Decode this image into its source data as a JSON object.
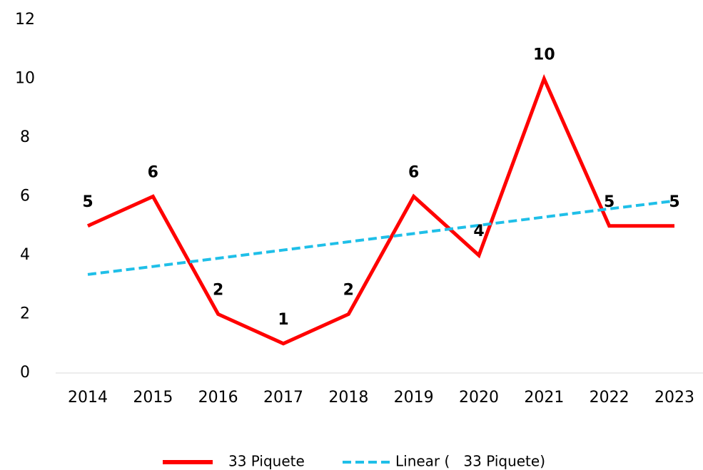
{
  "chart_data": {
    "type": "line",
    "categories": [
      "2014",
      "2015",
      "2016",
      "2017",
      "2018",
      "2019",
      "2020",
      "2021",
      "2022",
      "2023"
    ],
    "series": [
      {
        "name": "33 Piquete",
        "color": "#ff0000",
        "values": [
          5,
          6,
          2,
          1,
          2,
          6,
          4,
          10,
          5,
          5
        ],
        "data_labels": true
      },
      {
        "name": "Linear (   33 Piquete)",
        "color": "#1fbfe8",
        "dashed": true,
        "values": [
          3.35,
          3.62,
          3.9,
          4.18,
          4.46,
          4.74,
          5.02,
          5.3,
          5.58,
          5.85
        ]
      }
    ],
    "ylim": [
      0,
      12
    ],
    "yticks": [
      0,
      2,
      4,
      6,
      8,
      10,
      12
    ],
    "grid": false,
    "legend": "bottom"
  }
}
